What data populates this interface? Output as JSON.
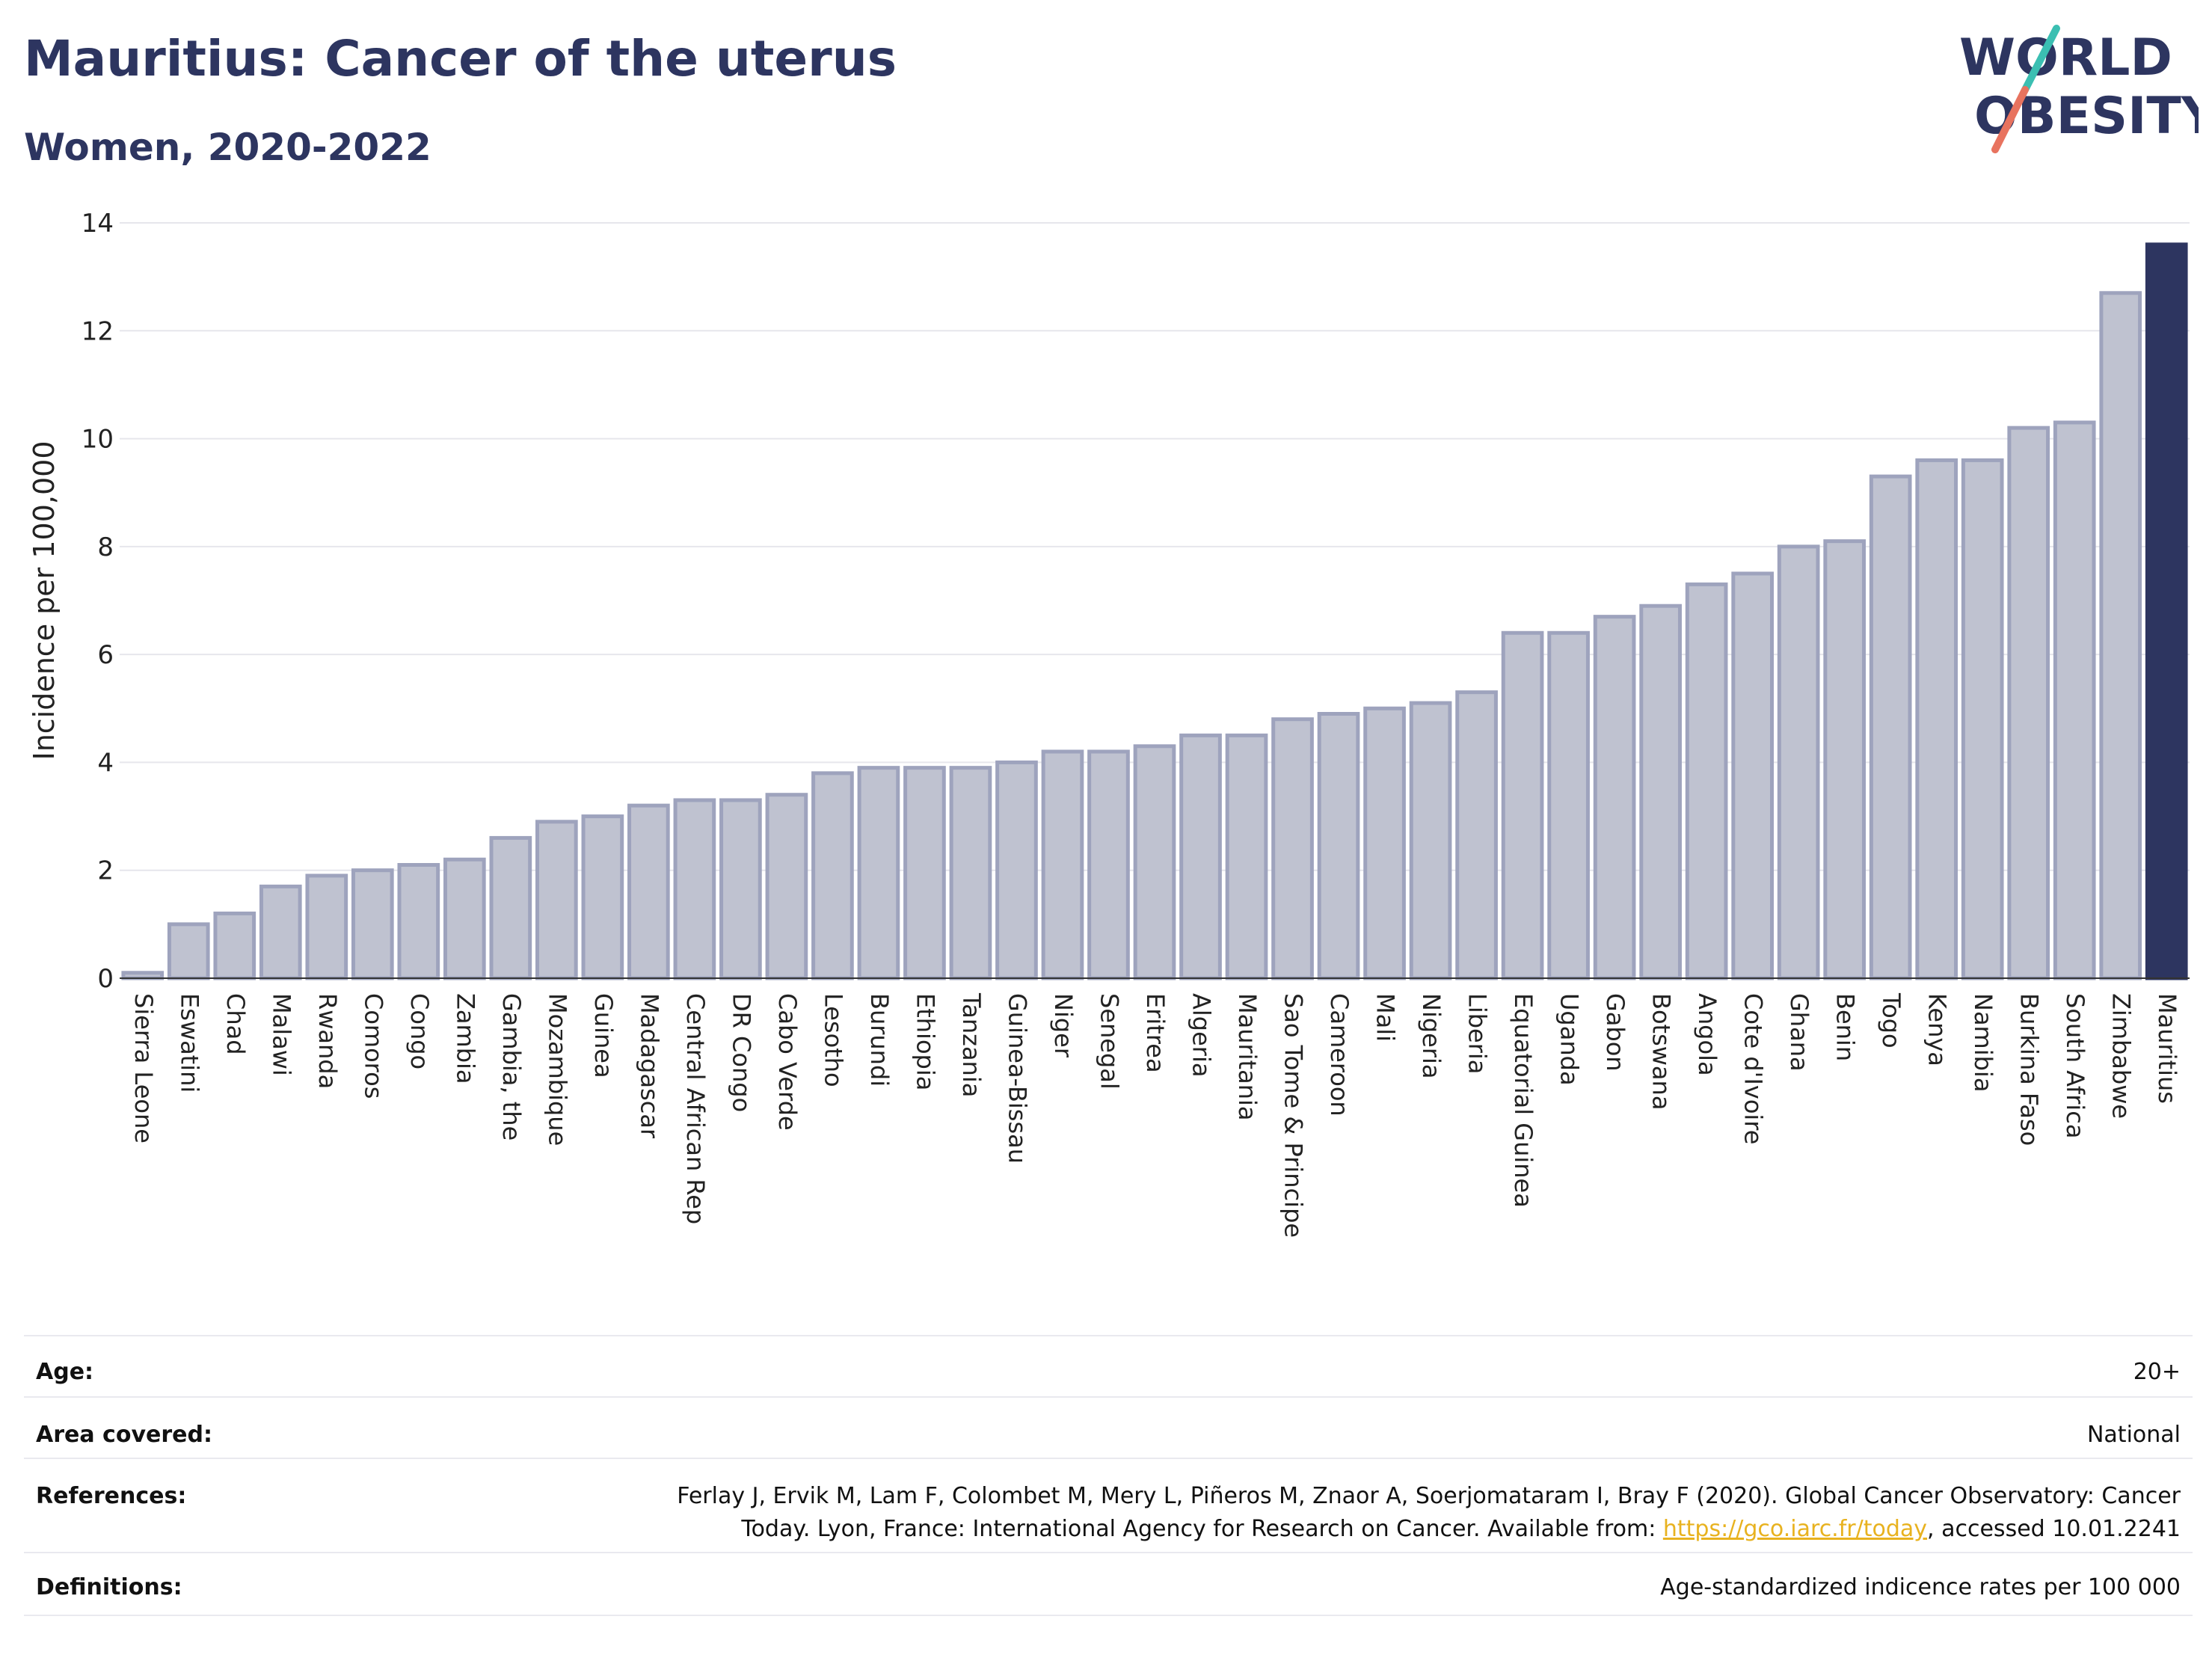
{
  "header": {
    "title": "Mauritius: Cancer of the uterus",
    "subtitle": "Women, 2020-2022"
  },
  "logo": {
    "line1": "WORLD",
    "line2": "OBESITY",
    "accent_teal": "#3bbfb2",
    "accent_red": "#e8735f",
    "color": "#2d3560"
  },
  "chart_data": {
    "type": "bar",
    "ylabel": "Incidence per 100,000",
    "ylim": [
      0,
      14
    ],
    "yticks": [
      0,
      2,
      4,
      6,
      8,
      10,
      12,
      14
    ],
    "grid": true,
    "highlight": "Mauritius",
    "colors": {
      "bar": "#bfc2d0",
      "bar_edge": "#9ea3bd",
      "highlight": "#2d3560"
    },
    "categories": [
      "Sierra Leone",
      "Eswatini",
      "Chad",
      "Malawi",
      "Rwanda",
      "Comoros",
      "Congo",
      "Zambia",
      "Gambia, the",
      "Mozambique",
      "Guinea",
      "Madagascar",
      "Central African Rep",
      "DR Congo",
      "Cabo Verde",
      "Lesotho",
      "Burundi",
      "Ethiopia",
      "Tanzania",
      "Guinea-Bissau",
      "Niger",
      "Senegal",
      "Eritrea",
      "Algeria",
      "Mauritania",
      "Sao Tome & Principe",
      "Cameroon",
      "Mali",
      "Nigeria",
      "Liberia",
      "Equatorial Guinea",
      "Uganda",
      "Gabon",
      "Botswana",
      "Angola",
      "Cote d'Ivoire",
      "Ghana",
      "Benin",
      "Togo",
      "Kenya",
      "Namibia",
      "Burkina Faso",
      "South Africa",
      "Zimbabwe",
      "Mauritius"
    ],
    "values": [
      0.1,
      1.0,
      1.2,
      1.7,
      1.9,
      2.0,
      2.1,
      2.2,
      2.6,
      2.9,
      3.0,
      3.2,
      3.3,
      3.3,
      3.4,
      3.8,
      3.9,
      3.9,
      3.9,
      4.0,
      4.2,
      4.2,
      4.3,
      4.5,
      4.5,
      4.8,
      4.9,
      5.0,
      5.1,
      5.3,
      6.4,
      6.4,
      6.7,
      6.9,
      7.3,
      7.5,
      8.0,
      8.1,
      9.3,
      9.6,
      9.6,
      10.2,
      10.3,
      12.7,
      13.6
    ]
  },
  "meta": {
    "age_label": "Age:",
    "age_value": "20+",
    "area_label": "Area covered:",
    "area_value": "National",
    "references_label": "References:",
    "references_line1": "Ferlay J, Ervik M, Lam F, Colombet M, Mery L, Piñeros M, Znaor A, Soerjomataram I, Bray F (2020). Global Cancer Observatory: Cancer",
    "references_line2_pre": "Today. Lyon, France: International Agency for Research on Cancer. Available from: ",
    "references_link": "https://gco.iarc.fr/today",
    "references_line2_post": ", accessed 10.01.2241",
    "definitions_label": "Definitions:",
    "definitions_value": "Age-standardized indicence rates per 100 000"
  }
}
